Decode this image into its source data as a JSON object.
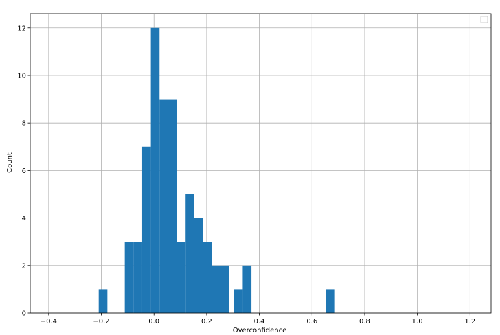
{
  "chart_data": {
    "type": "bar",
    "subtype": "histogram",
    "xlabel": "Overconfidence",
    "ylabel": "Count",
    "xlim": [
      -0.47,
      1.28
    ],
    "ylim": [
      0,
      12.6
    ],
    "xticks": [
      -0.4,
      -0.2,
      0.0,
      0.2,
      0.4,
      0.6,
      0.8,
      1.0,
      1.2
    ],
    "xtick_labels": [
      "−0.4",
      "−0.2",
      "0.0",
      "0.2",
      "0.4",
      "0.6",
      "0.8",
      "1.0",
      "1.2"
    ],
    "yticks": [
      0,
      2,
      4,
      6,
      8,
      10,
      12
    ],
    "ytick_labels": [
      "0",
      "2",
      "4",
      "6",
      "8",
      "10",
      "12"
    ],
    "grid": true,
    "legend": "top-right (empty)",
    "bar_color": "#1f77b4",
    "bins": [
      {
        "x0": -0.21,
        "x1": -0.177,
        "count": 1
      },
      {
        "x0": -0.111,
        "x1": -0.078,
        "count": 3
      },
      {
        "x0": -0.078,
        "x1": -0.045,
        "count": 3
      },
      {
        "x0": -0.045,
        "x1": -0.012,
        "count": 7
      },
      {
        "x0": -0.012,
        "x1": 0.021,
        "count": 12
      },
      {
        "x0": 0.021,
        "x1": 0.054,
        "count": 9
      },
      {
        "x0": 0.054,
        "x1": 0.087,
        "count": 9
      },
      {
        "x0": 0.087,
        "x1": 0.12,
        "count": 3
      },
      {
        "x0": 0.12,
        "x1": 0.153,
        "count": 5
      },
      {
        "x0": 0.153,
        "x1": 0.186,
        "count": 4
      },
      {
        "x0": 0.186,
        "x1": 0.219,
        "count": 3
      },
      {
        "x0": 0.219,
        "x1": 0.252,
        "count": 2
      },
      {
        "x0": 0.252,
        "x1": 0.285,
        "count": 2
      },
      {
        "x0": 0.304,
        "x1": 0.337,
        "count": 1
      },
      {
        "x0": 0.337,
        "x1": 0.37,
        "count": 2
      },
      {
        "x0": 0.654,
        "x1": 0.687,
        "count": 1
      }
    ]
  }
}
